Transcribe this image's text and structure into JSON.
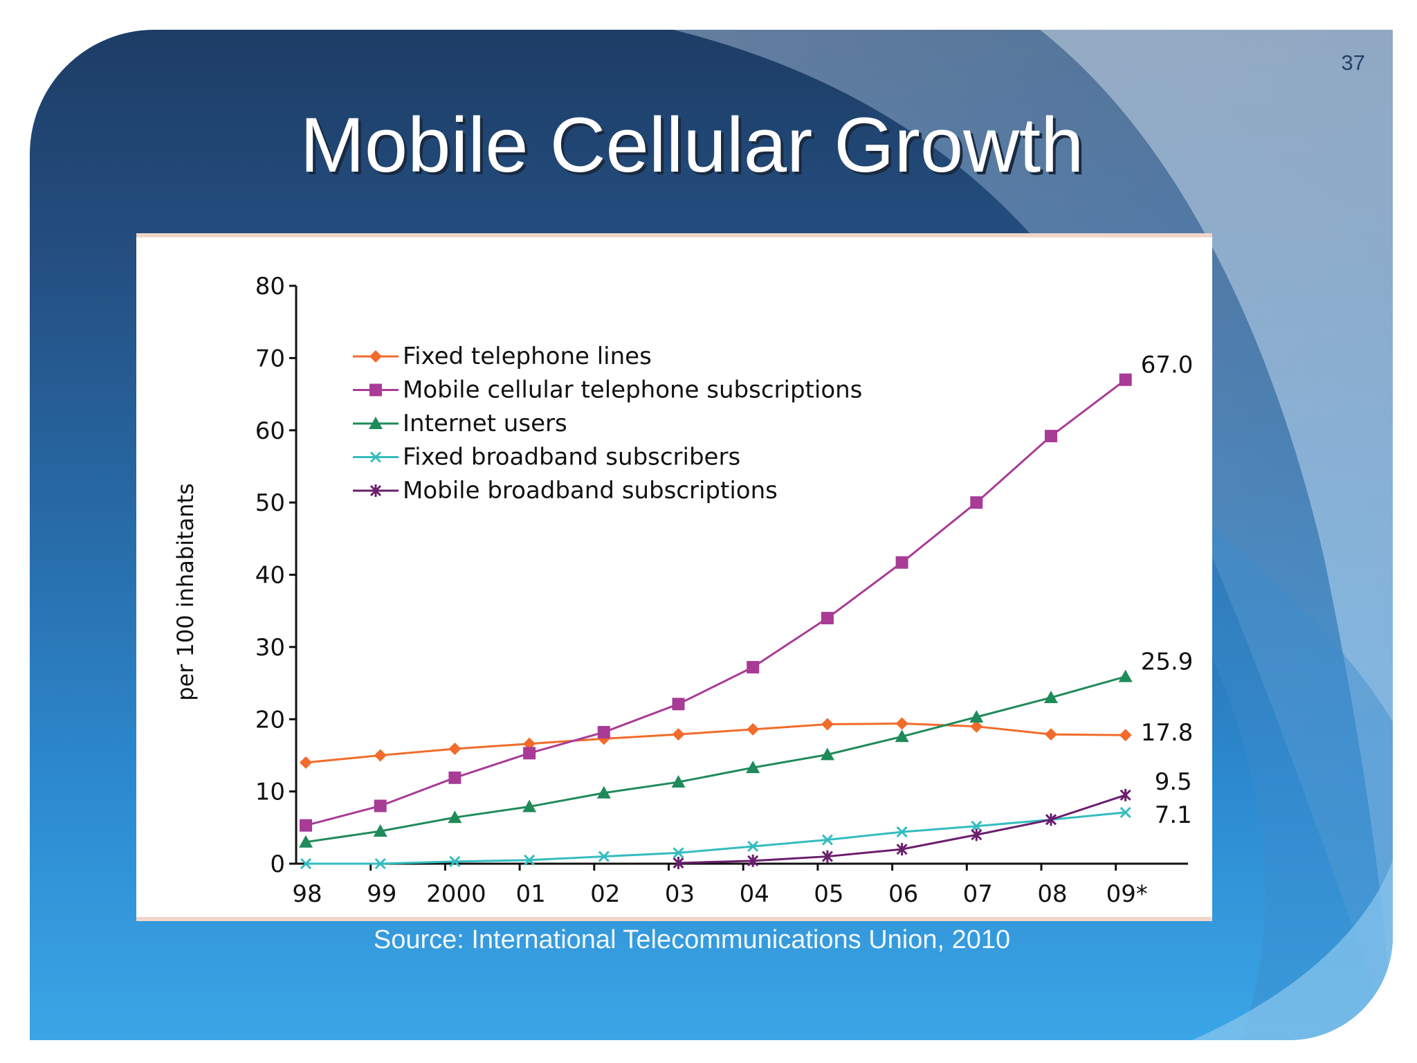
{
  "slide": {
    "title": "Mobile Cellular Growth",
    "page_number": "37",
    "source": "Source: International Telecommunications Union, 2010"
  },
  "colors": {
    "slide_dark": "#1d3d66",
    "slide_light": "#3aa6e6",
    "fixed_telephone": "#f26b2a",
    "mobile_cellular": "#a83b96",
    "internet": "#1f8a5a",
    "fixed_broadband": "#33bcc0",
    "mobile_broadband": "#6a1e6c"
  },
  "chart_data": {
    "type": "line",
    "title": "",
    "xlabel": "",
    "ylabel": "per 100 inhabitants",
    "ylim": [
      0,
      80
    ],
    "yticks": [
      0,
      10,
      20,
      30,
      40,
      50,
      60,
      70,
      80
    ],
    "categories": [
      "98",
      "99",
      "2000",
      "01",
      "02",
      "03",
      "04",
      "05",
      "06",
      "07",
      "08",
      "09*"
    ],
    "legend_position": "top-left",
    "series": [
      {
        "name": "Fixed telephone lines",
        "color_key": "fixed_telephone",
        "marker": "diamond",
        "values": [
          14.0,
          15.0,
          15.9,
          16.6,
          17.3,
          17.9,
          18.6,
          19.3,
          19.4,
          19.0,
          17.9,
          17.8
        ],
        "end_label": "17.8"
      },
      {
        "name": "Mobile cellular telephone subscriptions",
        "color_key": "mobile_cellular",
        "marker": "square",
        "values": [
          5.3,
          8.0,
          11.9,
          15.3,
          18.2,
          22.1,
          27.2,
          34.0,
          41.7,
          50.0,
          59.2,
          67.0
        ],
        "end_label": "67.0"
      },
      {
        "name": "Internet users",
        "color_key": "internet",
        "marker": "triangle",
        "values": [
          3.0,
          4.5,
          6.4,
          7.9,
          9.8,
          11.3,
          13.3,
          15.1,
          17.6,
          20.3,
          23.0,
          25.9
        ],
        "end_label": "25.9"
      },
      {
        "name": "Fixed broadband subscribers",
        "color_key": "fixed_broadband",
        "marker": "x",
        "values": [
          0.0,
          0.0,
          0.3,
          0.5,
          1.0,
          1.5,
          2.4,
          3.3,
          4.4,
          5.2,
          6.1,
          7.1
        ],
        "end_label": "7.1"
      },
      {
        "name": "Mobile broadband subscriptions",
        "color_key": "mobile_broadband",
        "marker": "star",
        "values": [
          null,
          null,
          null,
          null,
          null,
          0.1,
          0.4,
          1.0,
          2.0,
          4.0,
          6.1,
          9.5
        ],
        "end_label": "9.5"
      }
    ]
  }
}
